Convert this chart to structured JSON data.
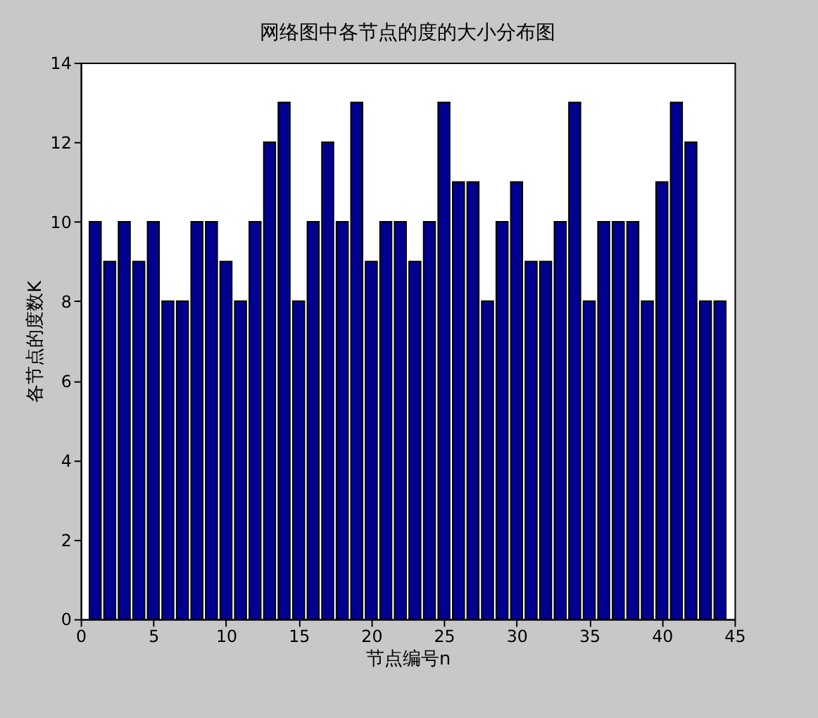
{
  "chart_data": {
    "type": "bar",
    "title": "网络图中各节点的度的大小分布图",
    "xlabel": "节点编号n",
    "ylabel": "各节点的度数K",
    "x": [
      1,
      2,
      3,
      4,
      5,
      6,
      7,
      8,
      9,
      10,
      11,
      12,
      13,
      14,
      15,
      16,
      17,
      18,
      19,
      20,
      21,
      22,
      23,
      24,
      25,
      26,
      27,
      28,
      29,
      30,
      31,
      32,
      33,
      34,
      35,
      36,
      37,
      38,
      39,
      40,
      41,
      42,
      43,
      44
    ],
    "values": [
      10,
      9,
      10,
      9,
      10,
      8,
      8,
      10,
      10,
      9,
      8,
      10,
      12,
      13,
      8,
      10,
      12,
      10,
      13,
      9,
      10,
      10,
      9,
      10,
      13,
      11,
      11,
      8,
      10,
      11,
      9,
      9,
      10,
      13,
      8,
      10,
      10,
      10,
      8,
      11,
      13,
      12,
      8,
      8
    ],
    "color": "#000090",
    "xlim": [
      0,
      45
    ],
    "xticks": [
      0,
      5,
      10,
      15,
      20,
      25,
      30,
      35,
      40,
      45
    ],
    "ylim": [
      0,
      14
    ],
    "yticks": [
      0,
      2,
      4,
      6,
      8,
      10,
      12,
      14
    ]
  }
}
